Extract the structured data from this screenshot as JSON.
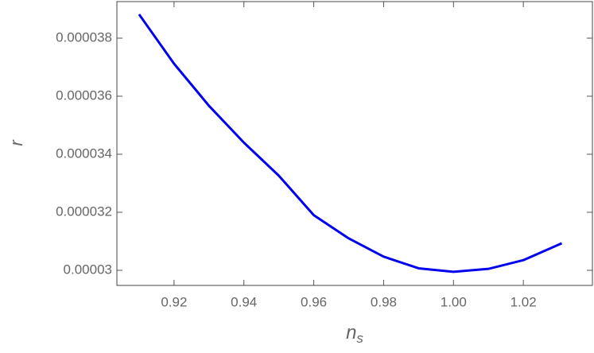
{
  "chart_data": {
    "type": "line",
    "xlabel": "n",
    "xlabel_subscript": "s",
    "ylabel": "r",
    "x": [
      0.91,
      0.92,
      0.93,
      0.94,
      0.95,
      0.96,
      0.97,
      0.98,
      0.99,
      1.0,
      1.01,
      1.02,
      1.031
    ],
    "series": [
      {
        "color": "#0000ee",
        "values": [
          3.882e-05,
          3.712e-05,
          3.567e-05,
          3.44e-05,
          3.326e-05,
          3.19e-05,
          3.11e-05,
          3.047e-05,
          3.007e-05,
          2.995e-05,
          3.005e-05,
          3.035e-05,
          3.093e-05
        ]
      }
    ],
    "xlim": [
      0.90364,
      1.03977
    ],
    "ylim": [
      2.94795e-05,
      3.926e-05
    ],
    "xticks": [
      0.92,
      0.94,
      0.96,
      0.98,
      {
        "value": 1.0,
        "label": "1.00"
      },
      1.02
    ],
    "yticks": [
      3e-05,
      3.2e-05,
      3.4e-05,
      3.6e-05,
      3.8e-05
    ]
  }
}
